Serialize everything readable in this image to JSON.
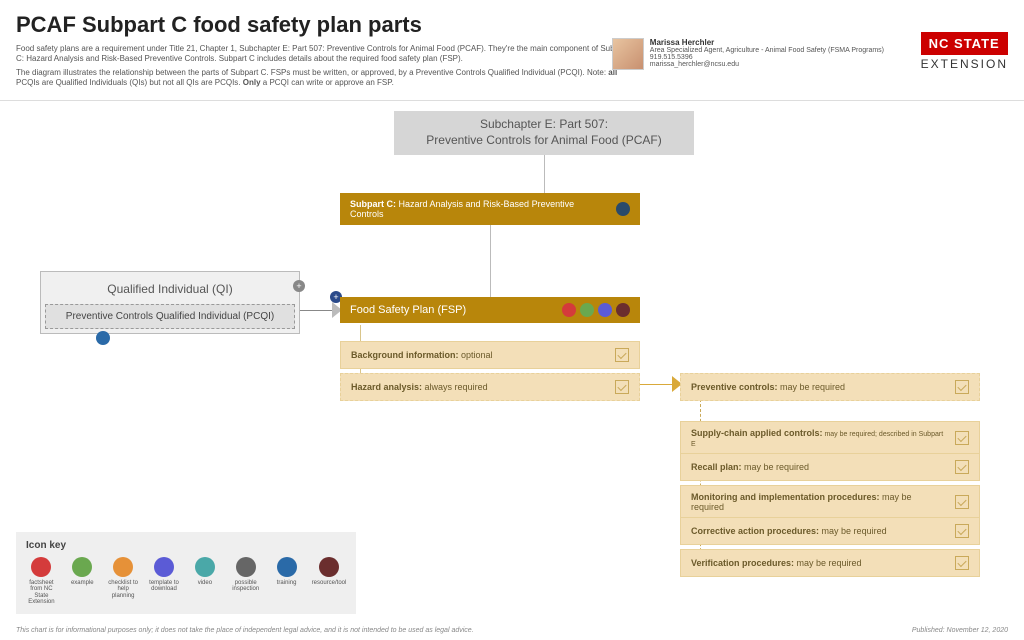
{
  "header": {
    "title": "PCAF Subpart C food safety plan parts",
    "intro1_a": "Food safety plans are a requirement under Title 21, Chapter 1, Subchapter E: Part 507: Preventive Controls for Animal Food (PCAF). They're the main component of Subpart C: Hazard Analysis and Risk-Based Preventive Controls. Subpart C includes details about the required food safety plan (FSP).",
    "intro2_a": "The diagram illustrates the relationship between the parts of Subpart C. FSPs must be written, or approved, by a Preventive Controls Qualified Individual (PCQI). Note: ",
    "intro2_b": "all",
    "intro2_c": " PCQIs are Qualified Individuals (QIs) but not all QIs are PCQIs. ",
    "intro2_d": "Only",
    "intro2_e": " a PCQI can write or approve an FSP."
  },
  "author": {
    "name": "Marissa Herchler",
    "role": "Area Specialized Agent, Agriculture - Animal Food Safety (FSMA Programs)",
    "phone": "919.515.5396",
    "email": "marissa_herchler@ncsu.edu"
  },
  "logo": {
    "nc": "NC STATE",
    "ext": "EXTENSION"
  },
  "nodes": {
    "top_line1": "Subchapter E: Part 507:",
    "top_line2": "Preventive Controls for Animal Food (PCAF)",
    "subpart_c_b": "Subpart C:",
    "subpart_c_t": " Hazard Analysis and Risk-Based Preventive Controls",
    "qi_title": "Qualified Individual (QI)",
    "pcqi": "Preventive Controls Qualified Individual (PCQI)",
    "fsp": "Food Safety Plan (FSP)",
    "bg_b": "Background information:",
    "bg_t": " optional",
    "haz_b": "Hazard analysis:",
    "haz_t": " always required",
    "prev_b": "Preventive controls:",
    "prev_t": " may be required",
    "s1_b": "Supply-chain applied controls:",
    "s1_t": " may be required; described in Subpart E",
    "s2_b": "Recall plan:",
    "s2_t": " may be required",
    "s3_b": "Monitoring and implementation procedures:",
    "s3_t": " may be required",
    "s4_b": "Corrective action procedures:",
    "s4_t": " may be required",
    "s5_b": "Verification procedures:",
    "s5_t": " may be required"
  },
  "colors": {
    "heading_brown": "#b8860b",
    "tan_fill": "#f3dfb8",
    "tan_text": "#6b5a2a",
    "grey_box": "#d6d6d6",
    "nc_red": "#cc0000"
  },
  "icon_key": {
    "title": "Icon key",
    "items": [
      {
        "label": "factsheet from NC State Extension",
        "color": "#d43b3b"
      },
      {
        "label": "example",
        "color": "#6aa84f"
      },
      {
        "label": "checklist to help planning",
        "color": "#e69138"
      },
      {
        "label": "template to download",
        "color": "#5b5bd6"
      },
      {
        "label": "video",
        "color": "#4aa8a8"
      },
      {
        "label": "possible inspection",
        "color": "#666666"
      },
      {
        "label": "training",
        "color": "#2a6aa8"
      },
      {
        "label": "resource/tool",
        "color": "#6b2e2e"
      }
    ]
  },
  "fsp_icons": [
    "#d43b3b",
    "#6aa84f",
    "#5b5bd6",
    "#6b2e2e"
  ],
  "footer": {
    "disclaimer": "This chart is for informational purposes only; it does not take the place of independent legal advice, and it is not intended to be used as legal advice.",
    "published": "Published: November 12, 2020"
  }
}
